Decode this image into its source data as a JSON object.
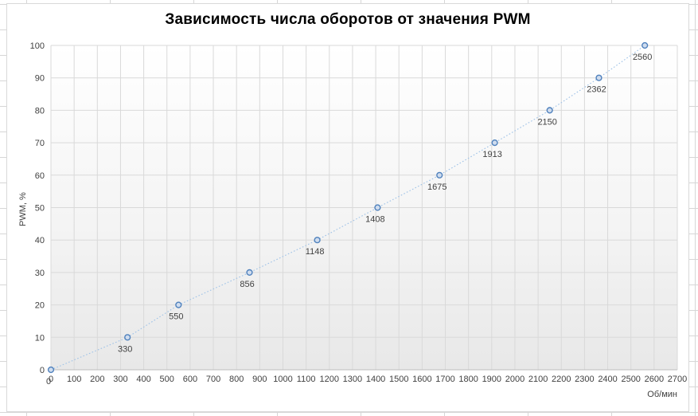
{
  "chart_data": {
    "type": "line",
    "title": "Зависимость числа оборотов от значения PWM",
    "xlabel": "Об/мин",
    "ylabel": "PWM, %",
    "points": [
      {
        "x": 0,
        "y": 0,
        "label": "0"
      },
      {
        "x": 330,
        "y": 10,
        "label": "330"
      },
      {
        "x": 550,
        "y": 20,
        "label": "550"
      },
      {
        "x": 856,
        "y": 30,
        "label": "856"
      },
      {
        "x": 1148,
        "y": 40,
        "label": "1148"
      },
      {
        "x": 1408,
        "y": 50,
        "label": "1408"
      },
      {
        "x": 1675,
        "y": 60,
        "label": "1675"
      },
      {
        "x": 1913,
        "y": 70,
        "label": "1913"
      },
      {
        "x": 2150,
        "y": 80,
        "label": "2150"
      },
      {
        "x": 2362,
        "y": 90,
        "label": "2362"
      },
      {
        "x": 2560,
        "y": 100,
        "label": "2560"
      }
    ],
    "xlim": [
      0,
      2700
    ],
    "ylim": [
      0,
      100
    ],
    "xticks": [
      0,
      100,
      200,
      300,
      400,
      500,
      600,
      700,
      800,
      900,
      1000,
      1100,
      1200,
      1300,
      1400,
      1500,
      1600,
      1700,
      1800,
      1900,
      2000,
      2100,
      2200,
      2300,
      2400,
      2500,
      2600,
      2700
    ],
    "yticks": [
      0,
      10,
      20,
      30,
      40,
      50,
      60,
      70,
      80,
      90,
      100
    ],
    "grid": true,
    "legend": "none",
    "line_style": "dotted",
    "marker": "open-circle",
    "colors": {
      "line": "#9ec2e7",
      "marker_stroke": "#4f81bd",
      "marker_fill": "#cfdcee",
      "gridline": "#d9d9d9",
      "axis_line": "#bdbdbd",
      "tick_label": "#404040",
      "data_label": "#404040",
      "title": "#000000",
      "plot_gradient_top": "#ffffff",
      "plot_gradient_mid": "#f4f4f4",
      "plot_gradient_bottom": "#e8e8e8",
      "chart_border": "#d9d9d9",
      "sheet_gridline": "#d6d6d6"
    }
  }
}
